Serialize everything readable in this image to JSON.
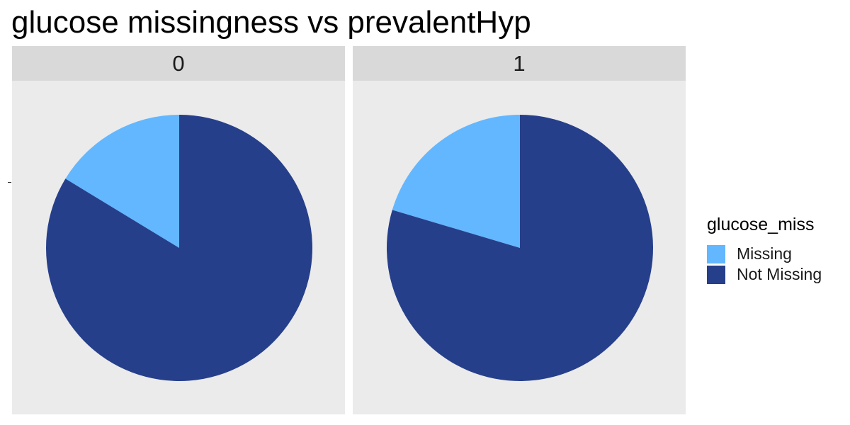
{
  "title": "glucose missingness vs prevalentHyp",
  "colors": {
    "Missing": "#63b7fe",
    "Not Missing": "#263f8b"
  },
  "legend": {
    "title": "glucose_miss",
    "items": [
      {
        "label": "Missing",
        "color": "#63b7fe"
      },
      {
        "label": "Not Missing",
        "color": "#263f8b"
      }
    ]
  },
  "chart_data": {
    "type": "pie",
    "title": "glucose missingness vs prevalentHyp",
    "facet_variable": "prevalentHyp",
    "fill_variable": "glucose_miss",
    "legend_placement": "right",
    "facets": [
      {
        "label": "0",
        "slices": [
          {
            "name": "Missing",
            "share": 0.163
          },
          {
            "name": "Not Missing",
            "share": 0.837
          }
        ]
      },
      {
        "label": "1",
        "slices": [
          {
            "name": "Missing",
            "share": 0.204
          },
          {
            "name": "Not Missing",
            "share": 0.796
          }
        ]
      }
    ]
  }
}
